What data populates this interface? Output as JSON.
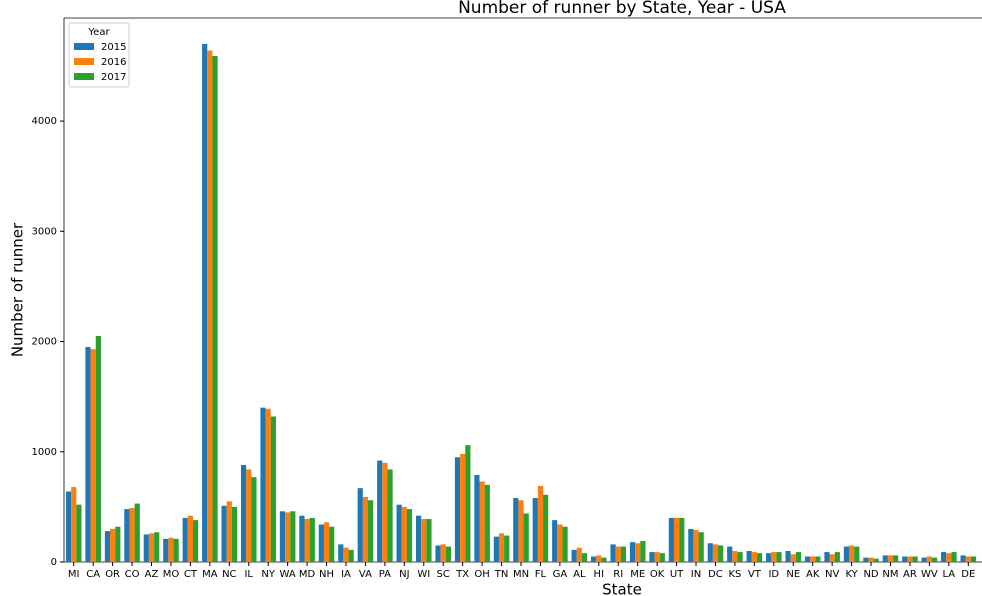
{
  "chart_data": {
    "type": "bar",
    "title": "Number of runner by State, Year - USA",
    "x_label": "State",
    "y_label": "Number of runner",
    "legend_title": "Year",
    "legend_position": "upper left",
    "categories": [
      "MI",
      "CA",
      "OR",
      "CO",
      "AZ",
      "MO",
      "CT",
      "MA",
      "NC",
      "IL",
      "NY",
      "WA",
      "MD",
      "NH",
      "IA",
      "VA",
      "PA",
      "NJ",
      "WI",
      "SC",
      "TX",
      "OH",
      "TN",
      "MN",
      "FL",
      "GA",
      "AL",
      "HI",
      "RI",
      "ME",
      "OK",
      "UT",
      "IN",
      "DC",
      "KS",
      "VT",
      "ID",
      "NE",
      "AK",
      "NV",
      "KY",
      "ND",
      "NM",
      "AR",
      "WV",
      "LA",
      "DE"
    ],
    "series": [
      {
        "name": "2015",
        "color": "#1f77b4",
        "values": [
          640,
          1950,
          280,
          480,
          250,
          210,
          400,
          4700,
          510,
          880,
          1400,
          460,
          420,
          340,
          160,
          670,
          920,
          520,
          420,
          150,
          950,
          790,
          230,
          580,
          580,
          380,
          110,
          50,
          160,
          180,
          90,
          400,
          300,
          170,
          140,
          100,
          80,
          100,
          50,
          90,
          140,
          40,
          60,
          50,
          40,
          90,
          60
        ]
      },
      {
        "name": "2016",
        "color": "#ff7f0e",
        "values": [
          680,
          1930,
          300,
          490,
          260,
          220,
          420,
          4640,
          550,
          840,
          1390,
          450,
          390,
          360,
          130,
          590,
          900,
          500,
          390,
          160,
          980,
          730,
          260,
          560,
          690,
          340,
          130,
          60,
          140,
          170,
          90,
          400,
          290,
          160,
          100,
          90,
          90,
          70,
          50,
          70,
          150,
          40,
          60,
          50,
          50,
          80,
          50
        ]
      },
      {
        "name": "2017",
        "color": "#2ca02c",
        "values": [
          520,
          2050,
          320,
          530,
          270,
          210,
          380,
          4590,
          500,
          770,
          1320,
          460,
          400,
          320,
          110,
          560,
          840,
          480,
          390,
          140,
          1060,
          700,
          240,
          440,
          610,
          320,
          80,
          40,
          140,
          190,
          80,
          400,
          270,
          150,
          90,
          80,
          90,
          90,
          50,
          90,
          140,
          30,
          60,
          50,
          40,
          90,
          50
        ]
      }
    ],
    "ylim": [
      0,
      4935
    ],
    "yticks": [
      0,
      1000,
      2000,
      3000,
      4000
    ],
    "grid": false
  }
}
